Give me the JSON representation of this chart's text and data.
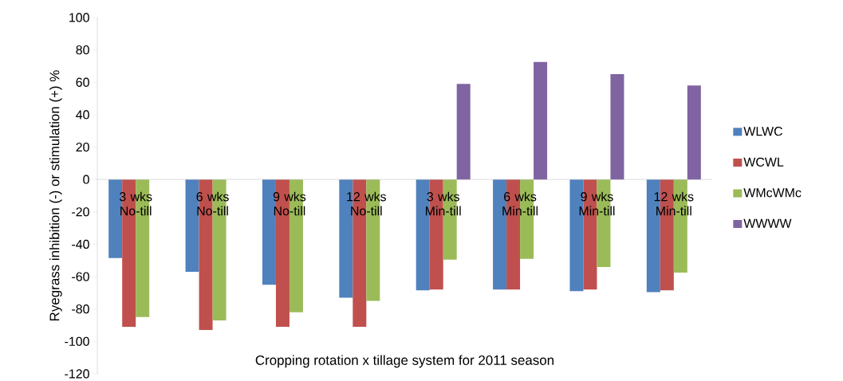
{
  "chart_data": {
    "type": "bar",
    "xlabel": "Cropping rotation x tillage system for 2011 season",
    "ylabel": "Ryegrass inhibition (-) or stimulation (+) %",
    "categories": [
      "3 wks No-till",
      "6 wks No-till",
      "9 wks No-till",
      "12 wks No-till",
      "3 wks Min-till",
      "6 wks Min-till",
      "9 wks Min-till",
      "12 wks Min-till"
    ],
    "series": [
      {
        "name": "WLWC",
        "color": "#4f81bd",
        "values": [
          -48.5,
          -57,
          -65,
          -73,
          -68.5,
          -68,
          -69,
          -69.5
        ]
      },
      {
        "name": "WCWL",
        "color": "#c0504d",
        "values": [
          -91,
          -93,
          -91,
          -91,
          -68,
          -68,
          -68,
          -68.5
        ]
      },
      {
        "name": "WMcWMc",
        "color": "#9bbb59",
        "values": [
          -85,
          -87,
          -82,
          -75,
          -49.5,
          -49,
          -54,
          -57.5
        ]
      },
      {
        "name": "WWWW",
        "color": "#8064a2",
        "values": [
          null,
          null,
          null,
          null,
          59,
          72.5,
          65,
          58
        ]
      }
    ],
    "ylim": [
      -120,
      100
    ],
    "yticks": [
      -120,
      -100,
      -80,
      -60,
      -40,
      -20,
      0,
      20,
      40,
      60,
      80,
      100
    ],
    "grid": false,
    "legend": "right"
  }
}
